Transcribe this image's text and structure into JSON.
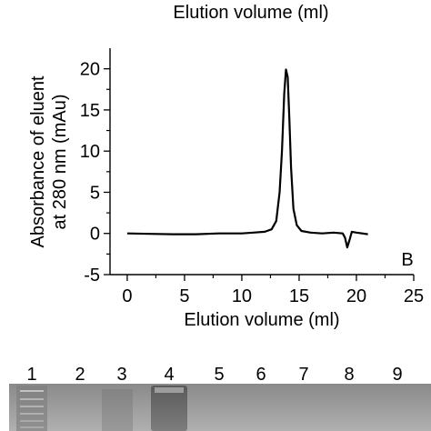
{
  "top_caption": "Elution volume (ml)",
  "chart_data": {
    "type": "line",
    "panel_label": "B",
    "xlabel": "Elution volume (ml)",
    "ylabel": "Absorbance of eluent at 280 nm (mAu)",
    "ylabel_lines": [
      "Absorbance of eluent",
      "at 280 nm (mAu)"
    ],
    "xlim": [
      -1.5,
      25
    ],
    "ylim": [
      -5,
      22.5
    ],
    "x_ticks": [
      0,
      5,
      10,
      15,
      20,
      25
    ],
    "y_ticks": [
      -5,
      0,
      5,
      10,
      15,
      20
    ],
    "grid": false,
    "legend": "none",
    "series": [
      {
        "x": [
          0,
          2,
          4,
          6,
          8,
          10,
          11,
          12,
          12.6,
          13,
          13.3,
          13.5,
          13.7,
          13.85,
          14.0,
          14.15,
          14.3,
          14.5,
          14.8,
          15.2,
          16,
          17,
          18,
          18.8,
          19.0,
          19.2,
          19.4,
          19.6,
          20,
          20.5,
          21
        ],
        "y": [
          0,
          -0.05,
          -0.1,
          -0.1,
          0,
          0,
          0.1,
          0.2,
          0.5,
          1.5,
          5,
          10,
          17,
          19.9,
          19,
          14,
          8,
          3,
          1,
          0.3,
          0.1,
          0,
          0.1,
          0,
          -0.5,
          -1.7,
          -0.8,
          0.2,
          0.1,
          0,
          -0.1
        ]
      }
    ]
  },
  "gel": {
    "lanes": [
      "1",
      "2",
      "3",
      "4",
      "5",
      "6",
      "7",
      "8",
      "9"
    ]
  }
}
